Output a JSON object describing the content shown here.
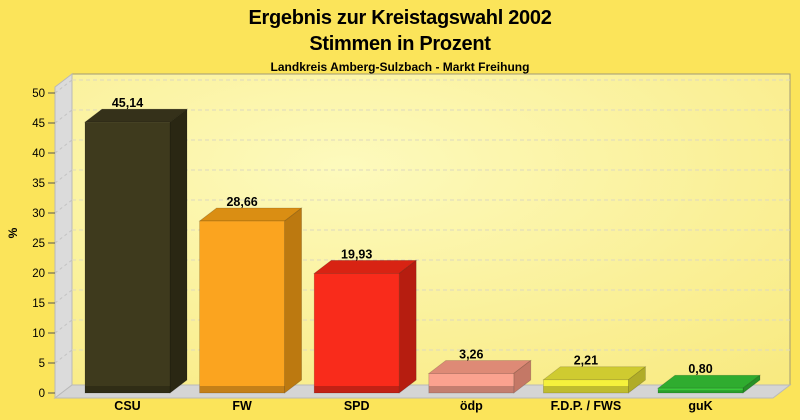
{
  "window": {
    "background": "#FBE45A"
  },
  "header": {
    "title_line1": "Ergebnis zur Kreistagswahl 2002",
    "title_line2": "Stimmen in Prozent",
    "subtitle": "Landkreis Amberg-Sulzbach - Markt Freihung"
  },
  "chart_data": {
    "type": "bar",
    "style": "3d-column",
    "title": "Ergebnis zur Kreistagswahl 2002",
    "subtitle": "Stimmen in Prozent",
    "caption": "Landkreis Amberg-Sulzbach - Markt Freihung",
    "xlabel": "",
    "ylabel": "%",
    "ylim": [
      0,
      50
    ],
    "ytick_step": 5,
    "grid": "dashed-horizontal",
    "legend": "none",
    "categories": [
      "CSU",
      "FW",
      "SPD",
      "ödp",
      "F.D.P. / FWS",
      "guK"
    ],
    "values": [
      45.14,
      28.66,
      19.93,
      3.26,
      2.21,
      0.8
    ],
    "value_labels": [
      "45,14",
      "28,66",
      "19,93",
      "3,26",
      "2,21",
      "0,80"
    ],
    "bar_colors": [
      {
        "party": "CSU",
        "front": "#3E3A1D",
        "top": "#35311A",
        "side": "#2A2713"
      },
      {
        "party": "FW",
        "front": "#FBA41F",
        "top": "#DA8E13",
        "side": "#BC7910"
      },
      {
        "party": "SPD",
        "front": "#F92B1B",
        "top": "#D82313",
        "side": "#B61D10"
      },
      {
        "party": "ödp",
        "front": "#FBA28F",
        "top": "#DE8A76",
        "side": "#C47866"
      },
      {
        "party": "F.D.P. / FWS",
        "front": "#F5F13C",
        "top": "#CFCB30",
        "side": "#B0AC28"
      },
      {
        "party": "guK",
        "front": "#38CB38",
        "top": "#2FAC2F",
        "side": "#279127"
      }
    ],
    "colors": {
      "background": "#FBE45A",
      "plot_bg_light": "#FDFABD",
      "plot_bg_deep": "#F8E97E",
      "wall": "#DBDBDB",
      "floor": "#D5D5D5",
      "wall_edge": "#B9B9B9",
      "gridline": "#DDD8BE",
      "plot_border": "#A09A76",
      "text": "#000000"
    }
  }
}
